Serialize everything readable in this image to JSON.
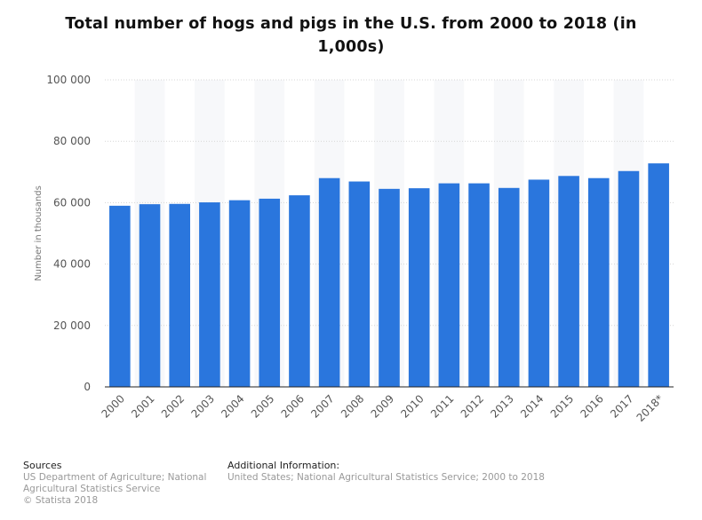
{
  "chart_data": {
    "type": "bar",
    "title": "Total number of hogs and pigs in the U.S. from 2000 to 2018 (in 1,000s)",
    "xlabel": "",
    "ylabel": "Number in thousands",
    "ylim": [
      0,
      100000
    ],
    "yticks": [
      0,
      20000,
      40000,
      60000,
      80000,
      100000
    ],
    "ytick_labels": [
      "0",
      "20 000",
      "40 000",
      "60 000",
      "80 000",
      "100 000"
    ],
    "grid": true,
    "bar_color": "#2a76dd",
    "categories": [
      "2000",
      "2001",
      "2002",
      "2003",
      "2004",
      "2005",
      "2006",
      "2007",
      "2008",
      "2009",
      "2010",
      "2011",
      "2012",
      "2013",
      "2014",
      "2015",
      "2016",
      "2017",
      "2018*"
    ],
    "values": [
      59000,
      59500,
      59600,
      60100,
      60800,
      61300,
      62400,
      68000,
      66900,
      64500,
      64700,
      66300,
      66300,
      64800,
      67500,
      68700,
      68000,
      70300,
      72800
    ]
  },
  "footer": {
    "sources_heading": "Sources",
    "sources_line1": "US Department of Agriculture; National",
    "sources_line2": "Agricultural Statistics Service",
    "copyright": "© Statista 2018",
    "additional_heading": "Additional Information:",
    "additional_text": "United States; National Agricultural Statistics Service; 2000 to 2018"
  }
}
